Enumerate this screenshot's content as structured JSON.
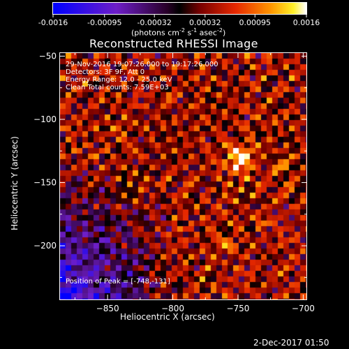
{
  "chart_data": {
    "type": "heatmap",
    "title": "Reconstructed RHESSI Image",
    "xlabel": "Heliocentric X (arcsec)",
    "ylabel": "Heliocentric Y (arcsec)",
    "xlim": [
      -887,
      -697
    ],
    "ylim": [
      -243,
      -47
    ],
    "x_ticks": [
      -850,
      -800,
      -750,
      -700
    ],
    "y_ticks": [
      -50,
      -100,
      -150,
      -200
    ],
    "colorbar": {
      "ticks": [
        "-0.0016",
        "-0.00095",
        "-0.00032",
        "0.00032",
        "0.00095",
        "0.0016"
      ],
      "range": [
        -0.0016,
        0.0016
      ],
      "label": "(photons cm-2 s-1 asec-2)"
    },
    "annotations": {
      "time": "29-Nov-2016 19:07:26.000 to 19:17:26.000",
      "detectors": "Detectors: 3F 9F, Att 0",
      "energy": "Energy Range: 12.0 - 25.0 keV",
      "clean": "Clean     Total counts: 7.59E+03",
      "peak": "Position of Peak = [-748,-131]"
    },
    "peak": {
      "x": -748,
      "y": -131
    },
    "timestamp": "2-Dec-2017 01:50"
  }
}
